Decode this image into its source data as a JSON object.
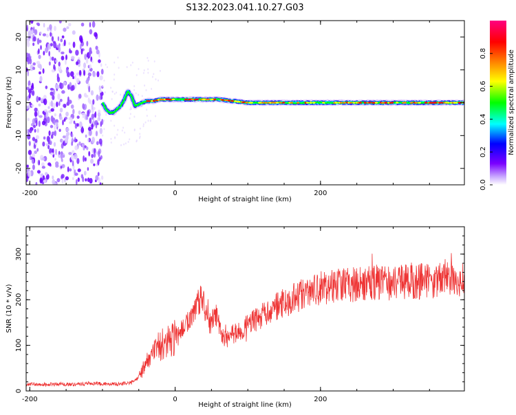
{
  "title": "S132.2023.041.10.27.G03",
  "chart_data": [
    {
      "type": "heatmap",
      "xlabel": "Height of straight line (km)",
      "ylabel": "Frequency (Hz)",
      "xlim": [
        -205,
        398
      ],
      "ylim": [
        -25,
        25
      ],
      "x_ticks": [
        -200,
        0,
        200
      ],
      "y_ticks": [
        -20,
        -10,
        0,
        10,
        20
      ],
      "colorbar": {
        "label": "Normalized spectral amplitude",
        "range": [
          0,
          1
        ],
        "ticks": [
          0.0,
          0.2,
          0.4,
          0.6,
          0.8
        ],
        "tick_labels": [
          "0.0",
          "0.2",
          "0.4",
          "0.6",
          "0.8"
        ],
        "colors": [
          "#ffffff",
          "#7a00ff",
          "#0000ff",
          "#00ffff",
          "#00ff00",
          "#ffff00",
          "#ff8000",
          "#ff0000",
          "#ff0080"
        ]
      },
      "noise_region_x": [
        -205,
        -100
      ],
      "signal_trace": {
        "x": [
          -100,
          -95,
          -90,
          -85,
          -80,
          -75,
          -70,
          -65,
          -60,
          -55,
          -50,
          -45,
          -40,
          -30,
          -20,
          0,
          20,
          40,
          60,
          80,
          100,
          140,
          200,
          240,
          280,
          320,
          360,
          398
        ],
        "frequency_hz": [
          0,
          -2,
          -3,
          -3,
          -2,
          -1,
          1,
          3.5,
          2,
          -1,
          -0.5,
          0,
          0.5,
          0.5,
          1,
          1,
          1,
          1,
          1,
          0.5,
          0,
          0,
          0,
          0,
          0,
          0,
          0,
          0
        ]
      }
    },
    {
      "type": "line",
      "xlabel": "Height of straight line (km)",
      "ylabel": "SNR (10 * v/v)",
      "xlim": [
        -205,
        398
      ],
      "ylim": [
        0,
        360
      ],
      "x_ticks": [
        -200,
        0,
        200
      ],
      "y_ticks": [
        0,
        100,
        200,
        300
      ],
      "color": "#ee3333",
      "x": [
        -205,
        -180,
        -160,
        -140,
        -120,
        -100,
        -80,
        -60,
        -50,
        -40,
        -30,
        -20,
        -10,
        0,
        10,
        20,
        30,
        35,
        40,
        45,
        50,
        55,
        60,
        65,
        70,
        75,
        80,
        90,
        100,
        120,
        140,
        160,
        180,
        200,
        220,
        240,
        260,
        280,
        300,
        320,
        340,
        360,
        380,
        398
      ],
      "y": [
        15,
        14,
        15,
        14,
        16,
        16,
        15,
        18,
        30,
        60,
        85,
        100,
        110,
        120,
        135,
        155,
        190,
        205,
        185,
        150,
        150,
        170,
        145,
        120,
        110,
        120,
        125,
        130,
        145,
        165,
        185,
        200,
        215,
        225,
        230,
        232,
        235,
        240,
        238,
        242,
        240,
        245,
        250,
        245
      ]
    }
  ]
}
